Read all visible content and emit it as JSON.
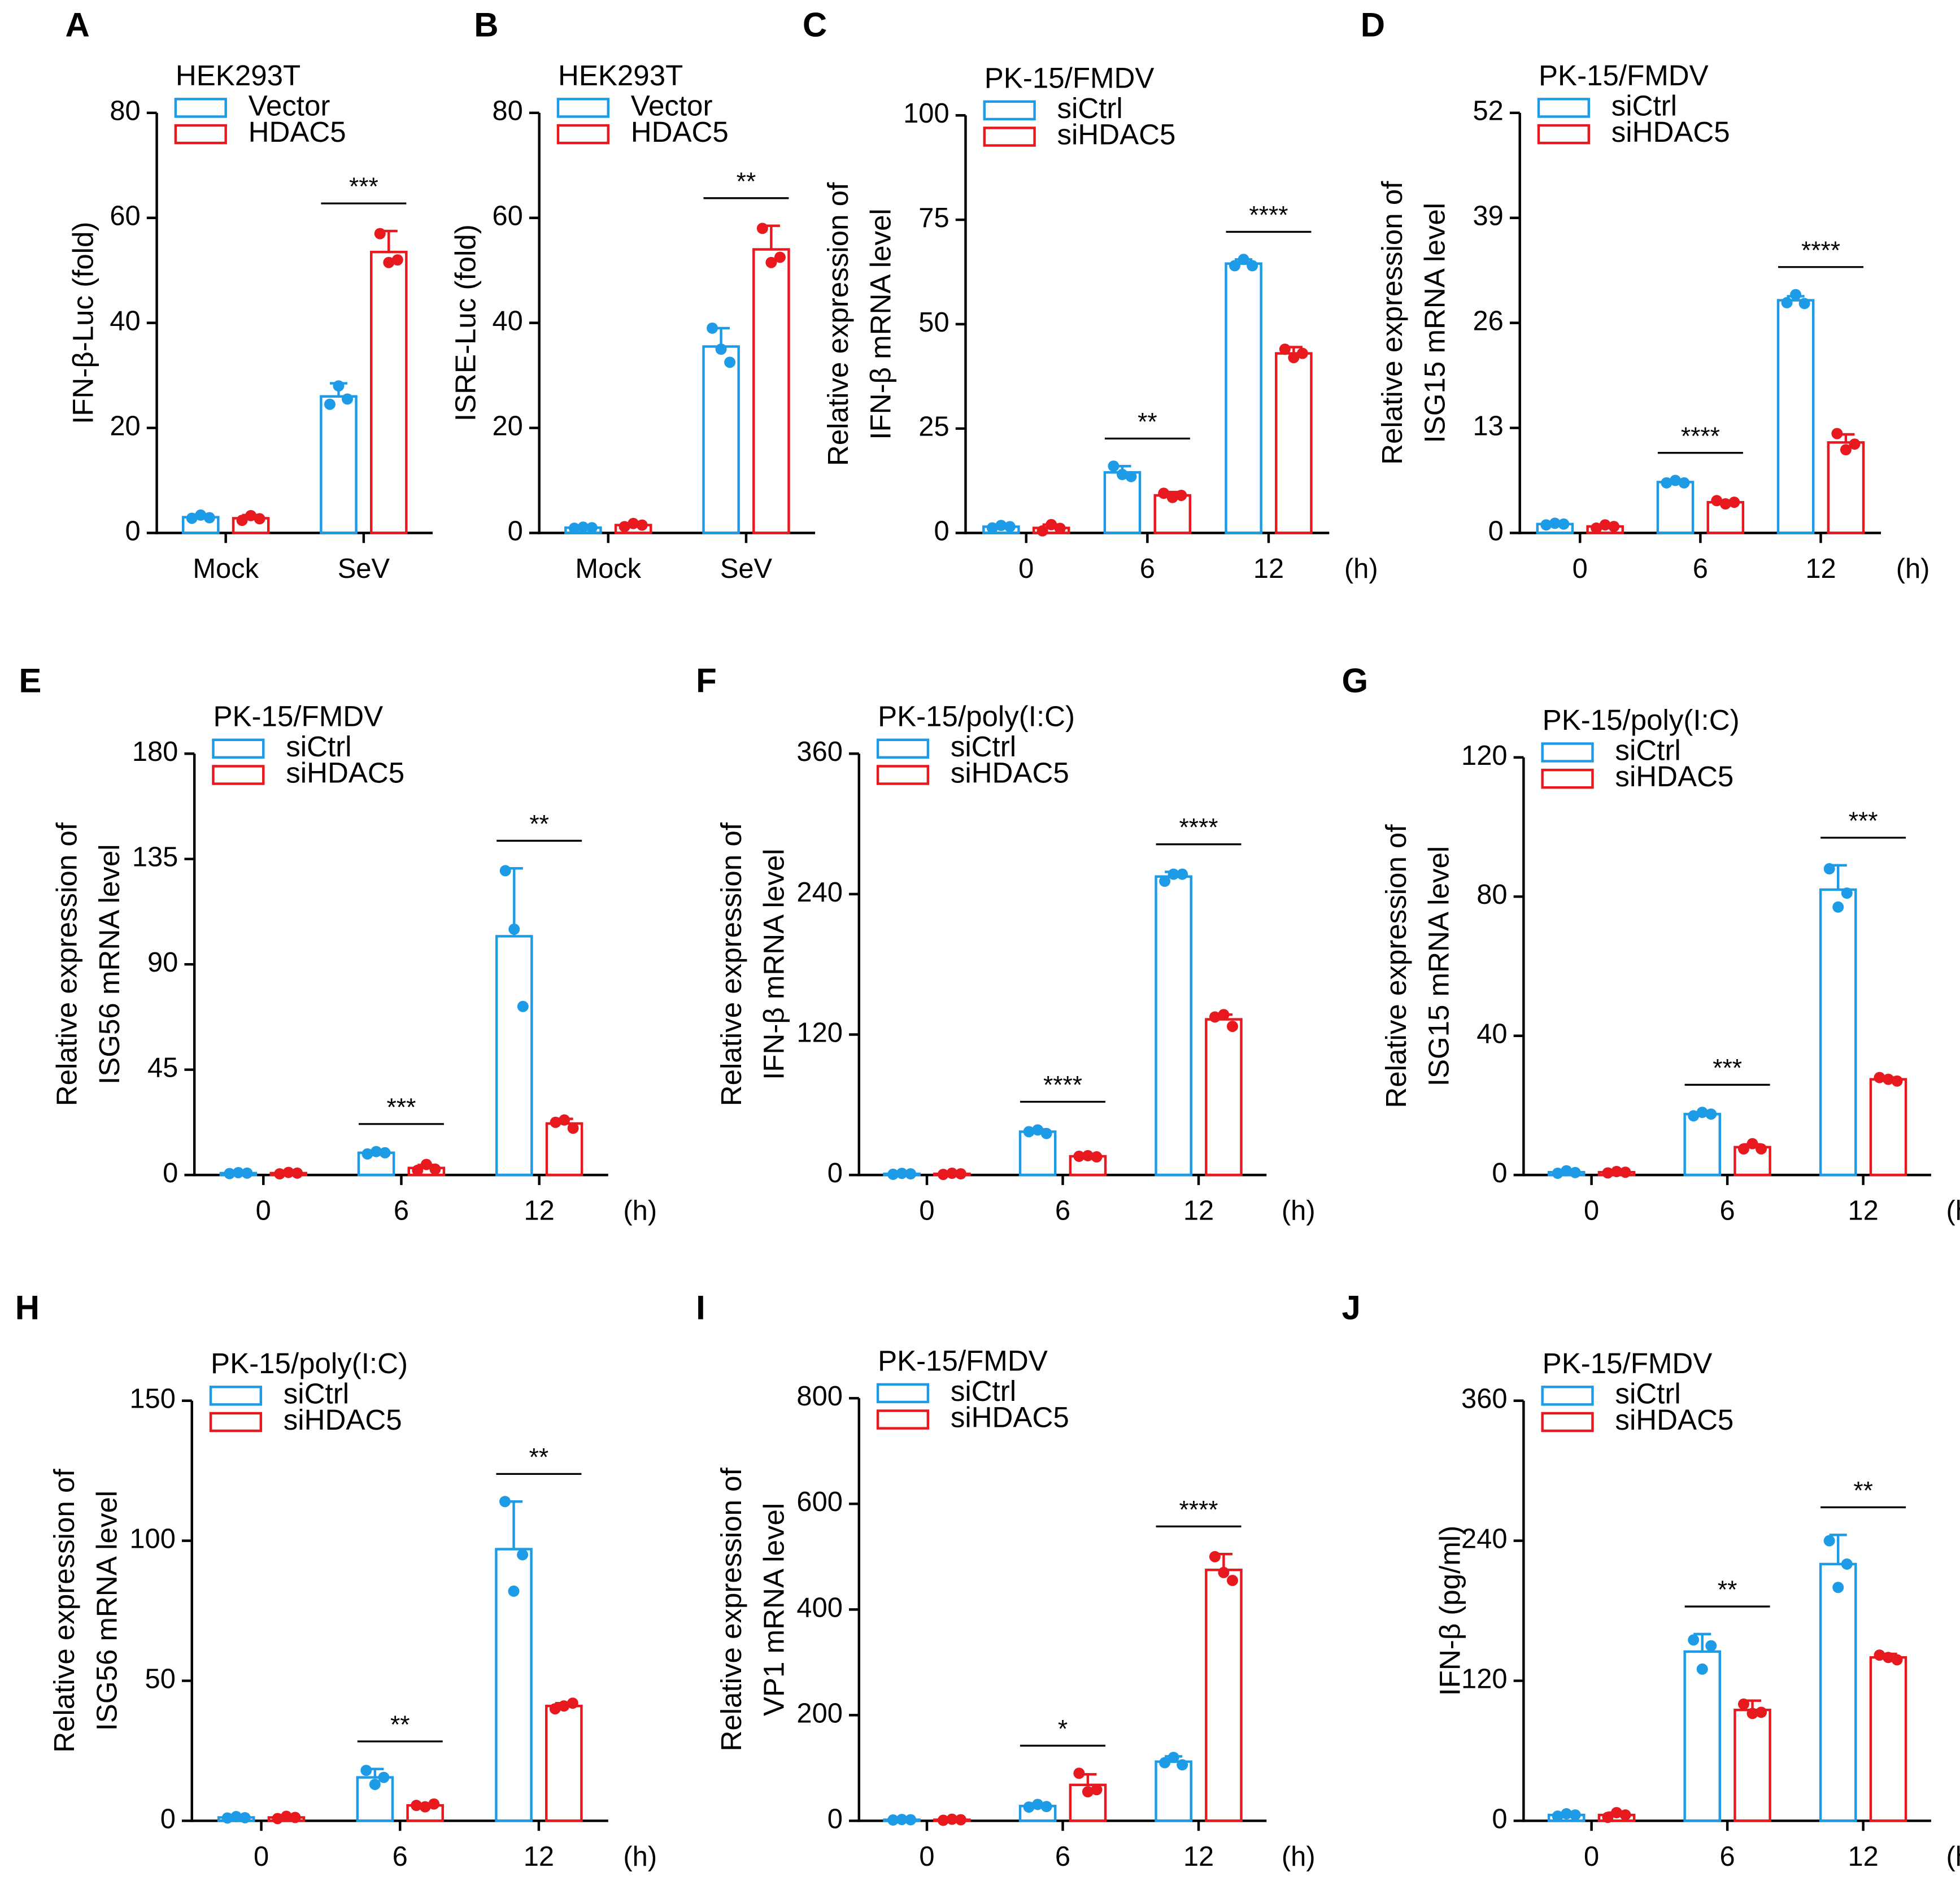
{
  "chart_data": [
    {
      "type": "bar",
      "panel": "A",
      "title": "HEK293T",
      "ylabel": [
        "IFN-β-Luc (fold)"
      ],
      "categories": [
        "Mock",
        "SeV"
      ],
      "ylim": [
        0,
        80
      ],
      "yticks": [
        0,
        20,
        40,
        60,
        80
      ],
      "significance": [
        null,
        "***"
      ],
      "series": [
        {
          "name": "Vector",
          "color": "#1e9be6",
          "values": [
            3.0,
            26
          ],
          "errors": [
            0.5,
            2.5
          ],
          "points": [
            [
              2.8,
              3.4,
              2.9
            ],
            [
              24.5,
              28,
              25.5
            ]
          ]
        },
        {
          "name": "HDAC5",
          "color": "#e8191e",
          "values": [
            2.8,
            53.5
          ],
          "errors": [
            0.6,
            4
          ],
          "points": [
            [
              2.4,
              3.3,
              2.7
            ],
            [
              57,
              51.5,
              52
            ]
          ]
        }
      ]
    },
    {
      "type": "bar",
      "panel": "B",
      "title": "HEK293T",
      "ylabel": [
        "ISRE-Luc (fold)"
      ],
      "categories": [
        "Mock",
        "SeV"
      ],
      "ylim": [
        0,
        80
      ],
      "yticks": [
        0,
        20,
        40,
        60,
        80
      ],
      "significance": [
        null,
        "**"
      ],
      "series": [
        {
          "name": "Vector",
          "color": "#1e9be6",
          "values": [
            1.0,
            35.5
          ],
          "errors": [
            0.2,
            3.5
          ],
          "points": [
            [
              0.9,
              1.1,
              1.0
            ],
            [
              39,
              35,
              32.5
            ]
          ]
        },
        {
          "name": "HDAC5",
          "color": "#e8191e",
          "values": [
            1.5,
            54
          ],
          "errors": [
            0.3,
            4.5
          ],
          "points": [
            [
              1.2,
              1.8,
              1.5
            ],
            [
              58,
              51.5,
              52.5
            ]
          ]
        }
      ]
    },
    {
      "type": "bar",
      "panel": "C",
      "title": "PK-15/FMDV",
      "ylabel": [
        "Relative expression of",
        "IFN-β mRNA level"
      ],
      "categories": [
        "0",
        "6",
        "12"
      ],
      "xunit": "(h)",
      "ylim": [
        0,
        100
      ],
      "yticks": [
        0,
        25,
        50,
        75,
        100
      ],
      "significance": [
        null,
        "**",
        "****"
      ],
      "series": [
        {
          "name": "siCtrl",
          "color": "#1e9be6",
          "values": [
            1.5,
            14.5,
            64.5
          ],
          "errors": [
            0.3,
            1.5,
            1
          ],
          "points": [
            [
              1.2,
              1.8,
              1.5
            ],
            [
              16,
              14,
              13.5
            ],
            [
              64,
              65.5,
              64
            ]
          ]
        },
        {
          "name": "siHDAC5",
          "color": "#e8191e",
          "values": [
            1.2,
            9,
            43
          ],
          "errors": [
            0.8,
            0.8,
            1.5
          ],
          "points": [
            [
              0.5,
              2,
              1.1
            ],
            [
              9.5,
              8.5,
              9
            ],
            [
              44,
              42,
              43
            ]
          ]
        }
      ]
    },
    {
      "type": "bar",
      "panel": "D",
      "title": "PK-15/FMDV",
      "ylabel": [
        "Relative expression of",
        "ISG15 mRNA level"
      ],
      "categories": [
        "0",
        "6",
        "12"
      ],
      "xunit": "(h)",
      "ylim": [
        0,
        52
      ],
      "yticks": [
        0,
        13,
        26,
        39,
        52
      ],
      "significance": [
        null,
        "****",
        "****"
      ],
      "series": [
        {
          "name": "siCtrl",
          "color": "#1e9be6",
          "values": [
            1.1,
            6.3,
            28.8
          ],
          "errors": [
            0.1,
            0.2,
            0.5
          ],
          "points": [
            [
              1,
              1.2,
              1.1
            ],
            [
              6.2,
              6.5,
              6.2
            ],
            [
              28.5,
              29.5,
              28.4
            ]
          ]
        },
        {
          "name": "siHDAC5",
          "color": "#e8191e",
          "values": [
            0.8,
            3.8,
            11.2
          ],
          "errors": [
            0.2,
            0.2,
            1
          ],
          "points": [
            [
              0.6,
              1,
              0.8
            ],
            [
              4,
              3.6,
              3.8
            ],
            [
              12.3,
              10.3,
              11
            ]
          ]
        }
      ]
    },
    {
      "type": "bar",
      "panel": "E",
      "title": "PK-15/FMDV",
      "ylabel": [
        "Relative expression of",
        "ISG56 mRNA level"
      ],
      "categories": [
        "0",
        "6",
        "12"
      ],
      "xunit": "(h)",
      "ylim": [
        0,
        180
      ],
      "yticks": [
        0,
        45,
        90,
        135,
        180
      ],
      "significance": [
        null,
        "***",
        "**"
      ],
      "series": [
        {
          "name": "siCtrl",
          "color": "#1e9be6",
          "values": [
            0.8,
            9.5,
            102
          ],
          "errors": [
            0.2,
            0.5,
            29
          ],
          "points": [
            [
              0.6,
              1,
              0.8
            ],
            [
              9,
              10,
              9.5
            ],
            [
              130,
              105,
              72
            ]
          ]
        },
        {
          "name": "siHDAC5",
          "color": "#e8191e",
          "values": [
            0.8,
            3,
            22
          ],
          "errors": [
            0.3,
            1.3,
            2
          ],
          "points": [
            [
              0.5,
              1.1,
              0.8
            ],
            [
              2,
              4.5,
              2.5
            ],
            [
              22.5,
              23.5,
              20
            ]
          ]
        }
      ]
    },
    {
      "type": "bar",
      "panel": "F",
      "title": "PK-15/poly(I:C)",
      "ylabel": [
        "Relative expression of",
        "IFN-β mRNA level"
      ],
      "categories": [
        "0",
        "6",
        "12"
      ],
      "xunit": "(h)",
      "ylim": [
        0,
        360
      ],
      "yticks": [
        0,
        120,
        240,
        360
      ],
      "significance": [
        null,
        "****",
        "****"
      ],
      "series": [
        {
          "name": "siCtrl",
          "color": "#1e9be6",
          "values": [
            1,
            37,
            255
          ],
          "errors": [
            0.4,
            2,
            4
          ],
          "points": [
            [
              0.6,
              1.4,
              1
            ],
            [
              37,
              38.5,
              35.5
            ],
            [
              251,
              257,
              257
            ]
          ]
        },
        {
          "name": "siHDAC5",
          "color": "#e8191e",
          "values": [
            1,
            16,
            133
          ],
          "errors": [
            0.5,
            0.5,
            4
          ],
          "points": [
            [
              0.5,
              1.5,
              1
            ],
            [
              16,
              16.5,
              15.5
            ],
            [
              135,
              137,
              127
            ]
          ]
        }
      ]
    },
    {
      "type": "bar",
      "panel": "G",
      "title": "PK-15/poly(I:C)",
      "ylabel": [
        "Relative expression of",
        "ISG15 mRNA level"
      ],
      "categories": [
        "0",
        "6",
        "12"
      ],
      "xunit": "(h)",
      "ylim": [
        0,
        120
      ],
      "yticks": [
        0,
        40,
        80,
        120
      ],
      "significance": [
        null,
        "***",
        "***"
      ],
      "series": [
        {
          "name": "siCtrl",
          "color": "#1e9be6",
          "values": [
            0.8,
            17.5,
            82
          ],
          "errors": [
            0.3,
            0.5,
            7
          ],
          "points": [
            [
              0.5,
              1.2,
              0.7
            ],
            [
              17,
              18,
              17.5
            ],
            [
              88,
              77,
              81
            ]
          ]
        },
        {
          "name": "siHDAC5",
          "color": "#e8191e",
          "values": [
            0.8,
            8,
            27.5
          ],
          "errors": [
            0.2,
            0.8,
            0.5
          ],
          "points": [
            [
              0.6,
              1,
              0.8
            ],
            [
              7.5,
              9,
              7.5
            ],
            [
              28,
              27.5,
              27
            ]
          ]
        }
      ]
    },
    {
      "type": "bar",
      "panel": "H",
      "title": "PK-15/poly(I:C)",
      "ylabel": [
        "Relative expression of",
        "ISG56 mRNA level"
      ],
      "categories": [
        "0",
        "6",
        "12"
      ],
      "xunit": "(h)",
      "ylim": [
        0,
        150
      ],
      "yticks": [
        0,
        50,
        100,
        150
      ],
      "significance": [
        null,
        "**",
        "**"
      ],
      "series": [
        {
          "name": "siCtrl",
          "color": "#1e9be6",
          "values": [
            1.2,
            15.5,
            97
          ],
          "errors": [
            0.3,
            3,
            17
          ],
          "points": [
            [
              1,
              1.5,
              1.1
            ],
            [
              18,
              13,
              15.5
            ],
            [
              114,
              82,
              95
            ]
          ]
        },
        {
          "name": "siHDAC5",
          "color": "#e8191e",
          "values": [
            1.2,
            5.5,
            41
          ],
          "errors": [
            0.4,
            0.5,
            1
          ],
          "points": [
            [
              0.8,
              1.6,
              1.2
            ],
            [
              5.5,
              5,
              6
            ],
            [
              40,
              41,
              42
            ]
          ]
        }
      ]
    },
    {
      "type": "bar",
      "panel": "I",
      "title": "PK-15/FMDV",
      "ylabel": [
        "Relative expression of",
        "VP1 mRNA level"
      ],
      "categories": [
        "0",
        "6",
        "12"
      ],
      "xunit": "(h)",
      "ylim": [
        0,
        800
      ],
      "yticks": [
        0,
        200,
        400,
        600,
        800
      ],
      "significance": [
        null,
        "*",
        "****"
      ],
      "series": [
        {
          "name": "siCtrl",
          "color": "#1e9be6",
          "values": [
            2,
            28,
            112
          ],
          "errors": [
            0.5,
            5,
            10
          ],
          "points": [
            [
              1.5,
              2.5,
              2
            ],
            [
              26,
              31,
              27
            ],
            [
              110,
              120,
              106
            ]
          ]
        },
        {
          "name": "siHDAC5",
          "color": "#e8191e",
          "values": [
            2,
            68,
            475
          ],
          "errors": [
            1,
            20,
            30
          ],
          "points": [
            [
              1,
              3,
              2
            ],
            [
              90,
              55,
              59
            ],
            [
              500,
              470,
              455
            ]
          ]
        }
      ]
    },
    {
      "type": "bar",
      "panel": "J",
      "title": "PK-15/FMDV",
      "ylabel": [
        "IFN-β (pg/ml)"
      ],
      "categories": [
        "0",
        "6",
        "12"
      ],
      "xunit": "(h)",
      "ylim": [
        0,
        360
      ],
      "yticks": [
        0,
        120,
        240,
        360
      ],
      "significance": [
        null,
        "**",
        "**"
      ],
      "series": [
        {
          "name": "siCtrl",
          "color": "#1e9be6",
          "values": [
            5,
            145,
            220
          ],
          "errors": [
            1,
            15,
            25
          ],
          "points": [
            [
              4,
              6,
              5
            ],
            [
              155,
              130,
              150
            ],
            [
              240,
              200,
              220
            ]
          ]
        },
        {
          "name": "siHDAC5",
          "color": "#e8191e",
          "values": [
            5,
            95,
            140
          ],
          "errors": [
            2,
            8,
            3
          ],
          "points": [
            [
              3,
              7,
              5
            ],
            [
              100,
              92,
              93
            ],
            [
              142,
              140,
              138
            ]
          ]
        }
      ]
    }
  ]
}
